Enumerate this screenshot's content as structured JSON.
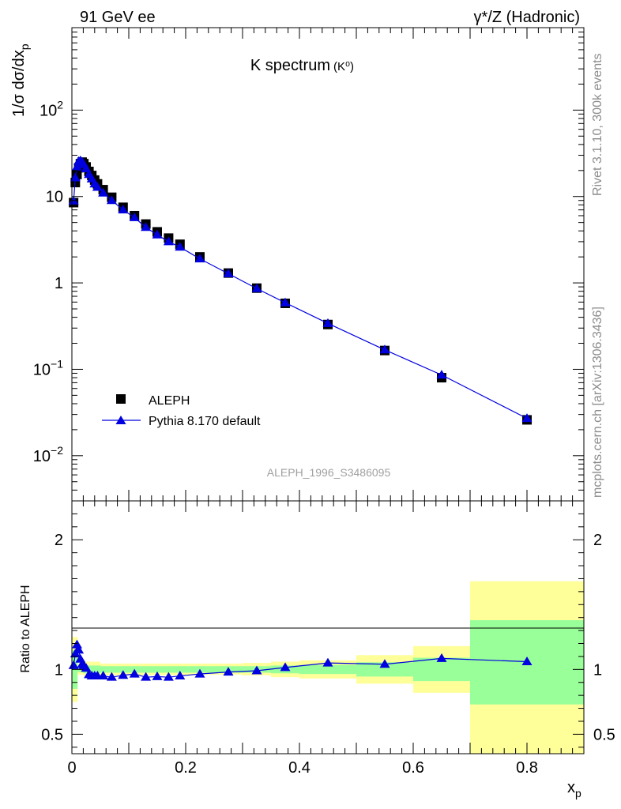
{
  "header": {
    "left": "91 GeV ee",
    "right": "γ*/Z (Hadronic)"
  },
  "side_labels": {
    "rivet": "Rivet 3.1.10,  300k events",
    "mcplots": "mcplots.cern.ch [arXiv:1306.3436]"
  },
  "chart_data": [
    {
      "type": "scatter",
      "title": "K spectrum",
      "title_sub": "(K⁰)",
      "ylabel": "1/σ dσ/dx_p",
      "ylabel_main": "1/σ dσ/dx",
      "ylabel_sub": "p",
      "yscale": "log",
      "ylim": [
        0.003,
        900
      ],
      "xlim": [
        0,
        0.9
      ],
      "yticks": [
        {
          "value": 0.01,
          "base": "10",
          "exp": "−2"
        },
        {
          "value": 0.1,
          "base": "10",
          "exp": "−1"
        },
        {
          "value": 1,
          "base": "1",
          "exp": ""
        },
        {
          "value": 10,
          "base": "10",
          "exp": ""
        },
        {
          "value": 100,
          "base": "10",
          "exp": "2"
        }
      ],
      "watermark": "ALEPH_1996_S3486095",
      "legend_position": "bottom-left",
      "series": [
        {
          "name": "ALEPH",
          "marker": "square",
          "color": "#000000",
          "x": [
            0.003,
            0.006,
            0.009,
            0.012,
            0.015,
            0.018,
            0.021,
            0.025,
            0.03,
            0.035,
            0.04,
            0.045,
            0.055,
            0.07,
            0.09,
            0.11,
            0.13,
            0.15,
            0.17,
            0.19,
            0.225,
            0.275,
            0.325,
            0.375,
            0.45,
            0.55,
            0.65,
            0.8
          ],
          "y": [
            8.5,
            14.5,
            18.0,
            21.5,
            24.0,
            25.0,
            24.0,
            22.0,
            19.5,
            17.5,
            15.5,
            14.0,
            12.0,
            9.8,
            7.5,
            6.0,
            4.8,
            3.9,
            3.3,
            2.8,
            2.0,
            1.3,
            0.87,
            0.58,
            0.33,
            0.165,
            0.08,
            0.026
          ]
        },
        {
          "name": "Pythia 8.170 default",
          "marker": "triangle",
          "color": "#0000e0",
          "x": [
            0.003,
            0.006,
            0.009,
            0.012,
            0.015,
            0.018,
            0.021,
            0.025,
            0.03,
            0.035,
            0.04,
            0.045,
            0.055,
            0.07,
            0.09,
            0.11,
            0.13,
            0.15,
            0.17,
            0.19,
            0.225,
            0.275,
            0.325,
            0.375,
            0.45,
            0.55,
            0.65,
            0.8
          ],
          "y": [
            8.8,
            16.5,
            22.0,
            25.5,
            26.0,
            25.0,
            23.5,
            21.0,
            18.0,
            16.0,
            14.0,
            12.8,
            11.0,
            9.0,
            7.0,
            5.7,
            4.4,
            3.6,
            3.0,
            2.6,
            1.9,
            1.28,
            0.86,
            0.59,
            0.34,
            0.168,
            0.086,
            0.027
          ]
        }
      ]
    },
    {
      "type": "scatter",
      "ylabel": "Ratio to ALEPH",
      "xlabel": "x",
      "xlabel_sub": "p",
      "ylim": [
        0.35,
        2.3
      ],
      "xlim": [
        0,
        0.9
      ],
      "yticks": [
        0.5,
        1,
        2
      ],
      "ytick_labels": [
        "0.5",
        "1",
        "2"
      ],
      "xticks": [
        0,
        0.2,
        0.4,
        0.6,
        0.8
      ],
      "xtick_labels": [
        "0",
        "0.2",
        "0.4",
        "0.6",
        "0.8"
      ],
      "bands": [
        {
          "x0": 0.0,
          "x1": 0.01,
          "yellow": [
            0.75,
            1.25
          ],
          "green": [
            0.85,
            1.15
          ]
        },
        {
          "x0": 0.01,
          "x1": 0.02,
          "yellow": [
            0.96,
            1.04
          ],
          "green": [
            0.98,
            1.02
          ]
        },
        {
          "x0": 0.02,
          "x1": 0.05,
          "yellow": [
            0.95,
            1.06
          ],
          "green": [
            0.97,
            1.03
          ]
        },
        {
          "x0": 0.05,
          "x1": 0.2,
          "yellow": [
            0.955,
            1.045
          ],
          "green": [
            0.975,
            1.025
          ]
        },
        {
          "x0": 0.2,
          "x1": 0.3,
          "yellow": [
            0.96,
            1.045
          ],
          "green": [
            0.975,
            1.025
          ]
        },
        {
          "x0": 0.3,
          "x1": 0.35,
          "yellow": [
            0.955,
            1.05
          ],
          "green": [
            0.975,
            1.025
          ]
        },
        {
          "x0": 0.35,
          "x1": 0.4,
          "yellow": [
            0.94,
            1.06
          ],
          "green": [
            0.97,
            1.03
          ]
        },
        {
          "x0": 0.4,
          "x1": 0.5,
          "yellow": [
            0.93,
            1.07
          ],
          "green": [
            0.965,
            1.035
          ]
        },
        {
          "x0": 0.5,
          "x1": 0.6,
          "yellow": [
            0.89,
            1.11
          ],
          "green": [
            0.945,
            1.055
          ]
        },
        {
          "x0": 0.6,
          "x1": 0.7,
          "yellow": [
            0.82,
            1.18
          ],
          "green": [
            0.91,
            1.09
          ]
        },
        {
          "x0": 0.7,
          "x1": 0.9,
          "yellow": [
            0.35,
            1.68
          ],
          "green": [
            0.73,
            1.38
          ]
        }
      ],
      "series": [
        {
          "name": "Pythia 8.170 default",
          "marker": "triangle",
          "color": "#0000e0",
          "x": [
            0.003,
            0.006,
            0.009,
            0.012,
            0.015,
            0.018,
            0.021,
            0.025,
            0.03,
            0.035,
            0.04,
            0.045,
            0.055,
            0.07,
            0.09,
            0.11,
            0.13,
            0.15,
            0.17,
            0.19,
            0.225,
            0.275,
            0.325,
            0.375,
            0.45,
            0.55,
            0.65,
            0.8
          ],
          "y": [
            1.03,
            1.12,
            1.19,
            1.15,
            1.08,
            1.04,
            1.03,
            1.01,
            0.96,
            0.95,
            0.95,
            0.95,
            0.95,
            0.94,
            0.955,
            0.965,
            0.94,
            0.945,
            0.94,
            0.95,
            0.965,
            0.98,
            0.99,
            1.015,
            1.05,
            1.04,
            1.085,
            1.06
          ]
        }
      ]
    }
  ],
  "colors": {
    "band_yellow": "#ffff99",
    "band_green": "#99ff99",
    "series_blue": "#0000e0",
    "side_text": "#8c8c8c"
  }
}
